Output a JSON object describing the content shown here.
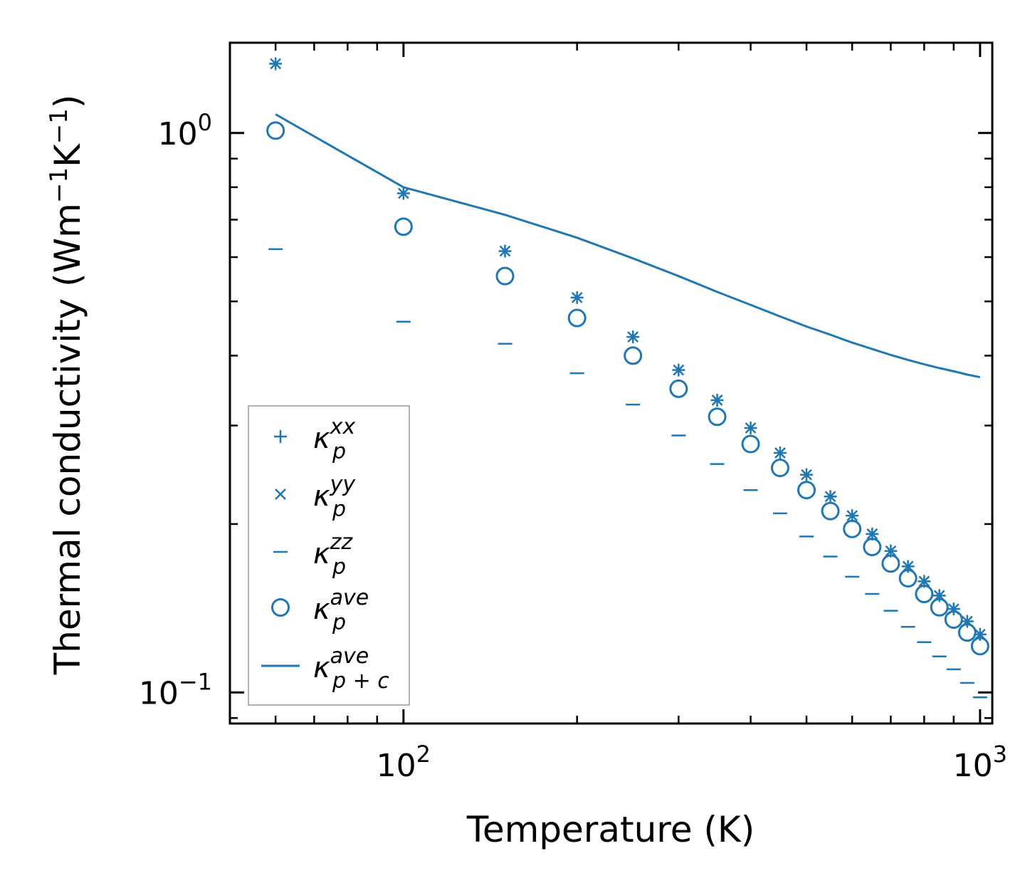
{
  "chart_data": {
    "type": "scatter",
    "xscale": "log",
    "yscale": "log",
    "xlabel": "Temperature (K)",
    "ylabel": "Thermal conductivity (Wm",
    "ylabel_unit_mid": "K",
    "ylabel_end": ")",
    "ylabel_exp": "−1",
    "xlim": [
      50,
      1050
    ],
    "ylim": [
      0.088,
      1.45
    ],
    "x_ticks": [
      {
        "value": 100,
        "base": "10",
        "exp": "2"
      },
      {
        "value": 1000,
        "base": "10",
        "exp": "3"
      }
    ],
    "y_ticks": [
      {
        "value": 0.1,
        "base": "10",
        "exp": "−1"
      },
      {
        "value": 1.0,
        "base": "10",
        "exp": "0"
      }
    ],
    "x": [
      60,
      100,
      150,
      200,
      250,
      300,
      350,
      400,
      450,
      500,
      550,
      600,
      650,
      700,
      750,
      800,
      850,
      900,
      950,
      1000
    ],
    "series": [
      {
        "name": "κp^xx",
        "sym": "κ",
        "sup": "xx",
        "sub": "p",
        "marker": "plus",
        "values": [
          1.33,
          0.78,
          0.615,
          0.508,
          0.432,
          0.377,
          0.333,
          0.297,
          0.268,
          0.245,
          0.224,
          0.207,
          0.192,
          0.179,
          0.168,
          0.158,
          0.149,
          0.141,
          0.134,
          0.127
        ]
      },
      {
        "name": "κp^yy",
        "sym": "κ",
        "sup": "yy",
        "sub": "p",
        "marker": "x",
        "values": [
          1.33,
          0.78,
          0.615,
          0.508,
          0.432,
          0.377,
          0.333,
          0.297,
          0.268,
          0.245,
          0.224,
          0.207,
          0.192,
          0.179,
          0.168,
          0.158,
          0.149,
          0.141,
          0.134,
          0.127
        ]
      },
      {
        "name": "κp^zz",
        "sym": "κ",
        "sup": "zz",
        "sub": "p",
        "marker": "hline",
        "values": [
          0.62,
          0.46,
          0.42,
          0.372,
          0.327,
          0.288,
          0.256,
          0.23,
          0.209,
          0.19,
          0.175,
          0.161,
          0.15,
          0.14,
          0.131,
          0.123,
          0.116,
          0.11,
          0.104,
          0.098
        ]
      },
      {
        "name": "κp^ave",
        "sym": "κ",
        "sup": "ave",
        "sub": "p",
        "marker": "circle",
        "values": [
          1.01,
          0.68,
          0.555,
          0.467,
          0.4,
          0.349,
          0.311,
          0.278,
          0.252,
          0.23,
          0.211,
          0.196,
          0.182,
          0.17,
          0.16,
          0.15,
          0.142,
          0.135,
          0.128,
          0.121
        ]
      },
      {
        "name": "κp+c^ave",
        "sym": "κ",
        "sup": "ave",
        "sub": "p + c",
        "marker": "line",
        "values": [
          1.08,
          0.8,
          0.714,
          0.65,
          0.597,
          0.555,
          0.52,
          0.493,
          0.47,
          0.451,
          0.436,
          0.422,
          0.411,
          0.401,
          0.393,
          0.386,
          0.38,
          0.375,
          0.37,
          0.366
        ]
      }
    ],
    "legend_position": "lower-left",
    "color": "#1f77b4"
  }
}
